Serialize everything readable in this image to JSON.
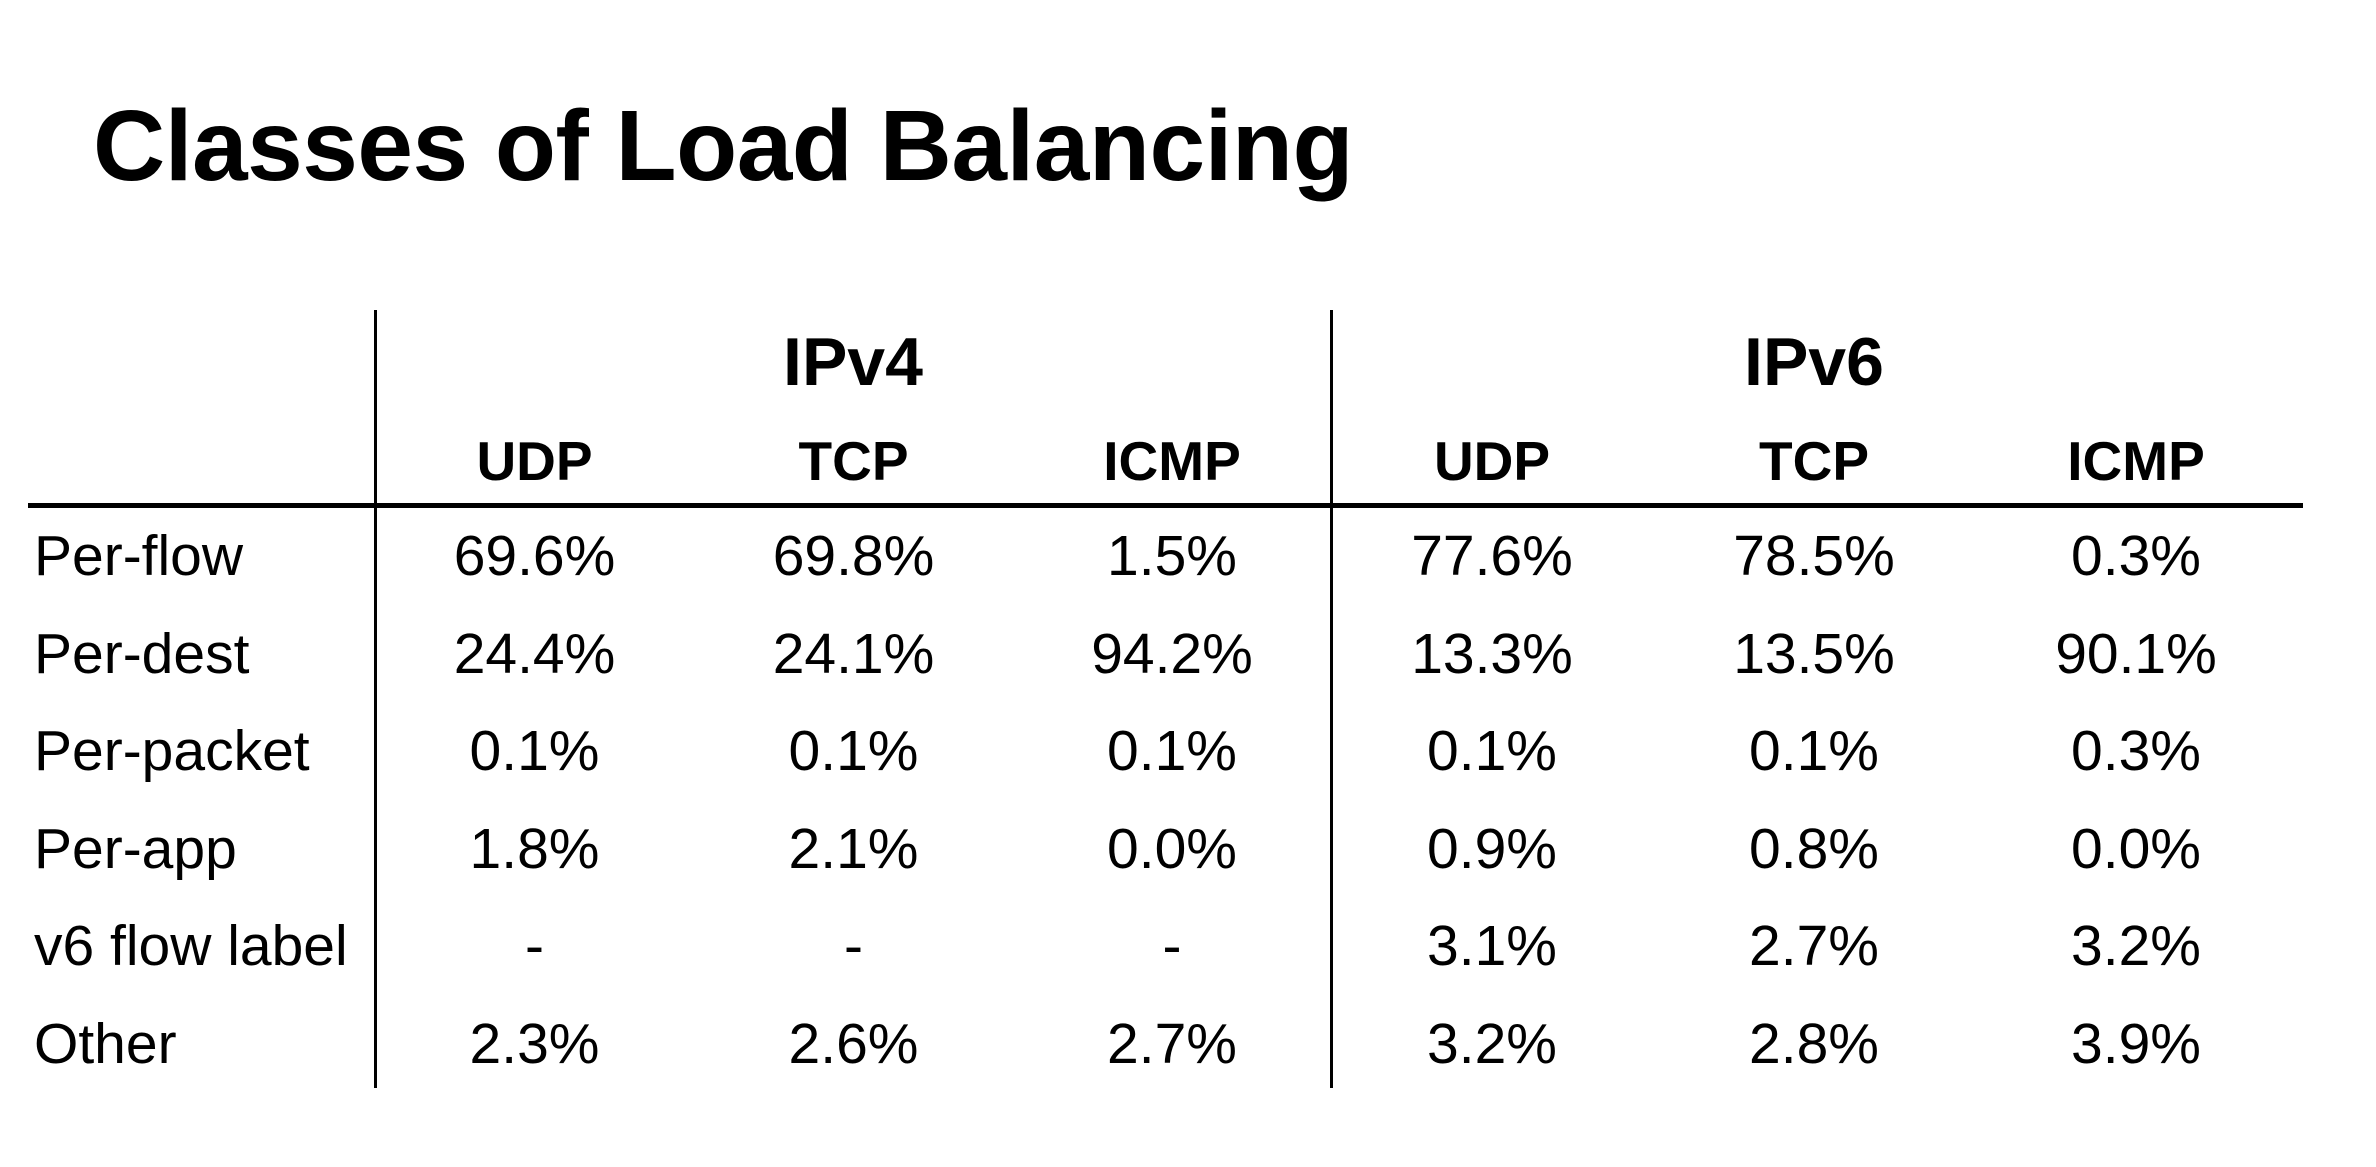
{
  "slide": {
    "title": "Classes of Load Balancing"
  },
  "colors": {
    "background": "#ffffff",
    "text": "#000000",
    "rule": "#000000"
  },
  "table": {
    "group_headers": [
      {
        "label": "IPv4",
        "span": 3
      },
      {
        "label": "IPv6",
        "span": 3
      }
    ],
    "column_headers": [
      "UDP",
      "TCP",
      "ICMP",
      "UDP",
      "TCP",
      "ICMP"
    ],
    "rows": [
      {
        "label": "Per-flow",
        "values": [
          "69.6%",
          "69.8%",
          "1.5%",
          "77.6%",
          "78.5%",
          "0.3%"
        ]
      },
      {
        "label": "Per-dest",
        "values": [
          "24.4%",
          "24.1%",
          "94.2%",
          "13.3%",
          "13.5%",
          "90.1%"
        ]
      },
      {
        "label": "Per-packet",
        "values": [
          "0.1%",
          "0.1%",
          "0.1%",
          "0.1%",
          "0.1%",
          "0.3%"
        ]
      },
      {
        "label": "Per-app",
        "values": [
          "1.8%",
          "2.1%",
          "0.0%",
          "0.9%",
          "0.8%",
          "0.0%"
        ]
      },
      {
        "label": "v6 flow label",
        "values": [
          "-",
          "-",
          "-",
          "3.1%",
          "2.7%",
          "3.2%"
        ]
      },
      {
        "label": "Other",
        "values": [
          "2.3%",
          "2.6%",
          "2.7%",
          "3.2%",
          "2.8%",
          "3.9%"
        ]
      }
    ]
  },
  "chart_data": {
    "type": "table",
    "title": "Classes of Load Balancing",
    "column_groups": [
      "IPv4",
      "IPv6"
    ],
    "columns": [
      "IPv4 UDP",
      "IPv4 TCP",
      "IPv4 ICMP",
      "IPv6 UDP",
      "IPv6 TCP",
      "IPv6 ICMP"
    ],
    "row_labels": [
      "Per-flow",
      "Per-dest",
      "Per-packet",
      "Per-app",
      "v6 flow label",
      "Other"
    ],
    "values_percent": [
      [
        69.6,
        69.8,
        1.5,
        77.6,
        78.5,
        0.3
      ],
      [
        24.4,
        24.1,
        94.2,
        13.3,
        13.5,
        90.1
      ],
      [
        0.1,
        0.1,
        0.1,
        0.1,
        0.1,
        0.3
      ],
      [
        1.8,
        2.1,
        0.0,
        0.9,
        0.8,
        0.0
      ],
      [
        null,
        null,
        null,
        3.1,
        2.7,
        3.2
      ],
      [
        2.3,
        2.6,
        2.7,
        3.2,
        2.8,
        3.9
      ]
    ]
  }
}
